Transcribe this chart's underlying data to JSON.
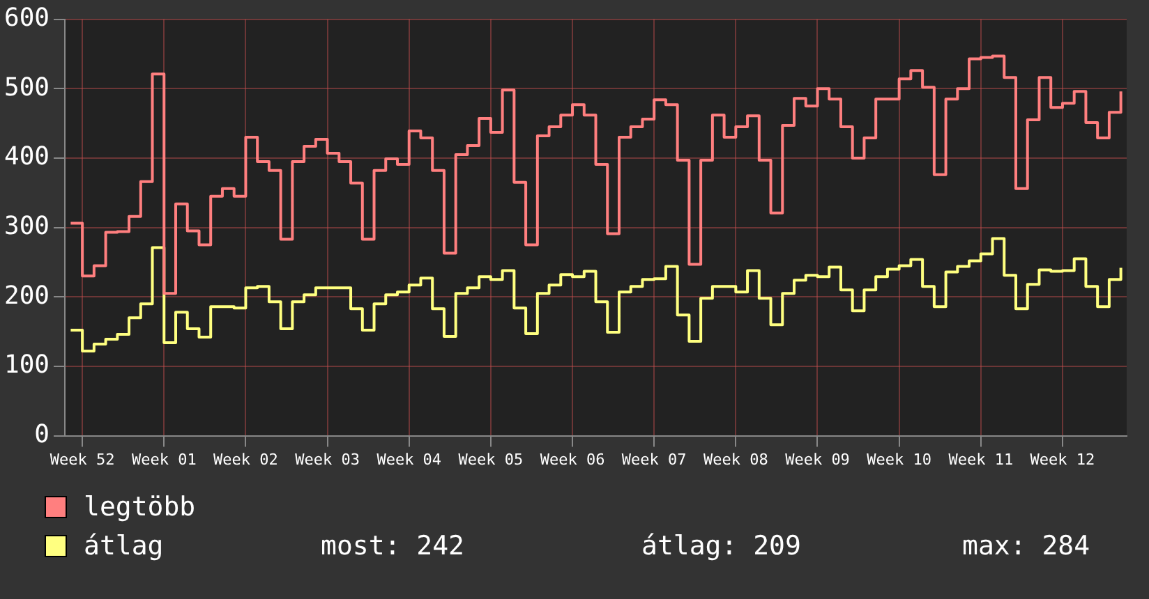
{
  "chart_data": {
    "type": "step",
    "categories": [
      null,
      "Week 52",
      null,
      null,
      null,
      null,
      null,
      null,
      "Week 01",
      null,
      null,
      null,
      null,
      null,
      null,
      "Week 02",
      null,
      null,
      null,
      null,
      null,
      null,
      "Week 03",
      null,
      null,
      null,
      null,
      null,
      null,
      "Week 04",
      null,
      null,
      null,
      null,
      null,
      null,
      "Week 05",
      null,
      null,
      null,
      null,
      null,
      null,
      "Week 06",
      null,
      null,
      null,
      null,
      null,
      null,
      "Week 07",
      null,
      null,
      null,
      null,
      null,
      null,
      "Week 08",
      null,
      null,
      null,
      null,
      null,
      null,
      "Week 09",
      null,
      null,
      null,
      null,
      null,
      null,
      "Week 10",
      null,
      null,
      null,
      null,
      null,
      null,
      "Week 11",
      null,
      null,
      null,
      null,
      null,
      null,
      "Week 12",
      null,
      null,
      null,
      null,
      null
    ],
    "series": [
      {
        "name": "legtöbb",
        "color": "#ff7f7f",
        "values": [
          306,
          230,
          245,
          293,
          294,
          316,
          366,
          521,
          205,
          334,
          295,
          275,
          345,
          356,
          345,
          430,
          395,
          382,
          283,
          395,
          417,
          427,
          407,
          395,
          364,
          283,
          382,
          399,
          391,
          439,
          429,
          382,
          263,
          405,
          418,
          457,
          437,
          498,
          365,
          275,
          432,
          445,
          462,
          477,
          462,
          391,
          291,
          430,
          445,
          456,
          484,
          477,
          397,
          247,
          397,
          462,
          430,
          445,
          461,
          397,
          321,
          447,
          486,
          475,
          500,
          485,
          445,
          400,
          429,
          485,
          485,
          514,
          526,
          502,
          376,
          485,
          500,
          543,
          545,
          547,
          516,
          356,
          455,
          516,
          473,
          479,
          496,
          451,
          429,
          466,
          496
        ]
      },
      {
        "name": "átlag",
        "color": "#ffff80",
        "values": [
          152,
          122,
          132,
          139,
          146,
          170,
          190,
          271,
          134,
          178,
          154,
          142,
          186,
          186,
          184,
          213,
          215,
          193,
          154,
          193,
          203,
          213,
          213,
          213,
          183,
          152,
          190,
          203,
          207,
          217,
          227,
          183,
          143,
          205,
          213,
          229,
          225,
          238,
          184,
          147,
          205,
          217,
          232,
          229,
          237,
          193,
          149,
          207,
          215,
          225,
          226,
          244,
          174,
          136,
          198,
          215,
          215,
          207,
          238,
          198,
          160,
          205,
          224,
          231,
          229,
          243,
          210,
          180,
          210,
          229,
          240,
          245,
          254,
          215,
          186,
          236,
          244,
          252,
          262,
          284,
          231,
          183,
          218,
          239,
          237,
          238,
          255,
          215,
          186,
          225,
          242
        ]
      }
    ],
    "ylim": [
      0,
      600
    ],
    "yticks": [
      0,
      100,
      200,
      300,
      400,
      500,
      600
    ],
    "grid": true,
    "legend": "bottom left",
    "marker": "none",
    "line_style": "solid",
    "annotations": [
      "most: 242",
      "átlag: 209",
      "max: 284"
    ]
  }
}
